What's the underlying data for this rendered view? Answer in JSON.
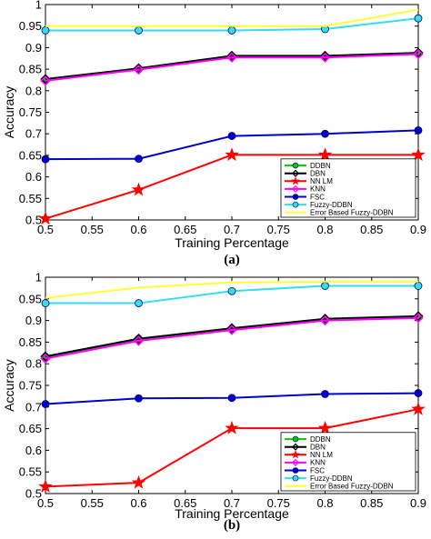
{
  "chart_data": [
    {
      "type": "line",
      "caption": "(a)",
      "xlabel": "Training Percentage",
      "ylabel": "Accuracy",
      "xlim": [
        0.5,
        0.9
      ],
      "ylim": [
        0.5,
        1.0
      ],
      "xticks": [
        "0.5",
        "0.55",
        "0.6",
        "0.65",
        "0.7",
        "0.75",
        "0.8",
        "0.85",
        "0.9"
      ],
      "yticks": [
        "0.5",
        "0.55",
        "0.6",
        "0.65",
        "0.7",
        "0.75",
        "0.8",
        "0.85",
        "0.9",
        "0.95",
        "1"
      ],
      "grid": false,
      "legend_position": "bottom-right",
      "x": [
        0.5,
        0.6,
        0.7,
        0.8,
        0.9
      ],
      "series": [
        {
          "name": "DDBN",
          "color": "#00cc00",
          "marker": "circle",
          "values": [
            0.825,
            0.85,
            0.879,
            0.879,
            0.886
          ]
        },
        {
          "name": "DBN",
          "color": "#000000",
          "marker": "diamond",
          "values": [
            0.827,
            0.852,
            0.881,
            0.881,
            0.888
          ]
        },
        {
          "name": "NN LM",
          "color": "#ff0000",
          "marker": "star",
          "values": [
            0.503,
            0.57,
            0.651,
            0.651,
            0.651
          ]
        },
        {
          "name": "KNN",
          "color": "#ff00ff",
          "marker": "diamond",
          "values": [
            0.823,
            0.849,
            0.877,
            0.877,
            0.885
          ]
        },
        {
          "name": "FSC",
          "color": "#0000cc",
          "marker": "circle",
          "values": [
            0.641,
            0.642,
            0.695,
            0.7,
            0.708
          ]
        },
        {
          "name": "Fuzzy-DDBN",
          "color": "#33ddee",
          "marker": "circle",
          "values": [
            0.94,
            0.94,
            0.94,
            0.943,
            0.968
          ]
        },
        {
          "name": "Error Based Fuzzy-DDBN",
          "color": "#ffff33",
          "marker": "none",
          "values": [
            0.95,
            0.95,
            0.95,
            0.95,
            0.988
          ]
        }
      ]
    },
    {
      "type": "line",
      "caption": "(b)",
      "xlabel": "Training Percentage",
      "ylabel": "Accuracy",
      "xlim": [
        0.5,
        0.9
      ],
      "ylim": [
        0.5,
        1.0
      ],
      "xticks": [
        "0.5",
        "0.55",
        "0.6",
        "0.65",
        "0.7",
        "0.75",
        "0.8",
        "0.85",
        "0.9"
      ],
      "yticks": [
        "0.5",
        "0.55",
        "0.6",
        "0.65",
        "0.7",
        "0.75",
        "0.8",
        "0.85",
        "0.9",
        "0.95",
        "1"
      ],
      "grid": false,
      "legend_position": "bottom-right",
      "x": [
        0.5,
        0.6,
        0.7,
        0.8,
        0.9
      ],
      "series": [
        {
          "name": "DDBN",
          "color": "#00cc00",
          "marker": "circle",
          "values": [
            0.815,
            0.855,
            0.88,
            0.902,
            0.908
          ]
        },
        {
          "name": "DBN",
          "color": "#000000",
          "marker": "diamond",
          "values": [
            0.817,
            0.858,
            0.882,
            0.904,
            0.91
          ]
        },
        {
          "name": "NN LM",
          "color": "#ff0000",
          "marker": "star",
          "values": [
            0.516,
            0.525,
            0.651,
            0.651,
            0.695
          ]
        },
        {
          "name": "KNN",
          "color": "#ff00ff",
          "marker": "diamond",
          "values": [
            0.812,
            0.853,
            0.878,
            0.9,
            0.906
          ]
        },
        {
          "name": "FSC",
          "color": "#0000cc",
          "marker": "circle",
          "values": [
            0.707,
            0.72,
            0.721,
            0.73,
            0.732
          ]
        },
        {
          "name": "Fuzzy-DDBN",
          "color": "#33ddee",
          "marker": "circle",
          "values": [
            0.94,
            0.94,
            0.968,
            0.98,
            0.98
          ]
        },
        {
          "name": "Error Based Fuzzy-DDBN",
          "color": "#ffff33",
          "marker": "none",
          "values": [
            0.952,
            0.976,
            0.988,
            0.99,
            0.99
          ]
        }
      ]
    }
  ]
}
